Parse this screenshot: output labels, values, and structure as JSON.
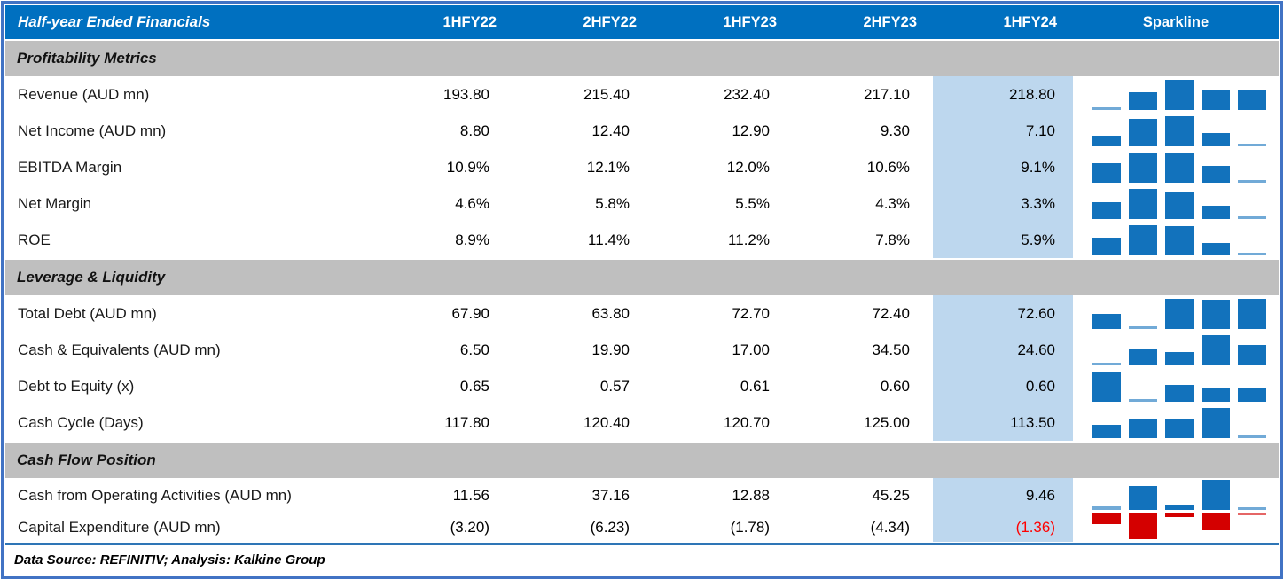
{
  "colors": {
    "header_bg": "#0070C0",
    "band_bg": "#BFBFBF",
    "highlight_bg": "#BDD7EE",
    "bar_blue": "#1272BC",
    "bar_red": "#D40000",
    "negative_text": "#FF0000",
    "frame_border": "#4173C4",
    "divider": "#2E75B6"
  },
  "header": {
    "title": "Half-year Ended Financials",
    "columns": [
      "1HFY22",
      "2HFY22",
      "1HFY23",
      "2HFY23",
      "1HFY24"
    ],
    "sparkline_label": "Sparkline",
    "highlighted_column": "1HFY24"
  },
  "sections": [
    {
      "label": "Profitability Metrics",
      "rows": [
        {
          "label": "Revenue (AUD mn)",
          "display": [
            "193.80",
            "215.40",
            "232.40",
            "217.10",
            "218.80"
          ]
        },
        {
          "label": "Net Income (AUD mn)",
          "display": [
            "8.80",
            "12.40",
            "12.90",
            "9.30",
            "7.10"
          ]
        },
        {
          "label": "EBITDA Margin",
          "display": [
            "10.9%",
            "12.1%",
            "12.0%",
            "10.6%",
            "9.1%"
          ]
        },
        {
          "label": "Net Margin",
          "display": [
            "4.6%",
            "5.8%",
            "5.5%",
            "4.3%",
            "3.3%"
          ]
        },
        {
          "label": "ROE",
          "display": [
            "8.9%",
            "11.4%",
            "11.2%",
            "7.8%",
            "5.9%"
          ]
        }
      ]
    },
    {
      "label": "Leverage & Liquidity",
      "rows": [
        {
          "label": "Total Debt (AUD mn)",
          "display": [
            "67.90",
            "63.80",
            "72.70",
            "72.40",
            "72.60"
          ]
        },
        {
          "label": "Cash & Equivalents (AUD mn)",
          "display": [
            "6.50",
            "19.90",
            "17.00",
            "34.50",
            "24.60"
          ]
        },
        {
          "label": "Debt to Equity (x)",
          "display": [
            "0.65",
            "0.57",
            "0.61",
            "0.60",
            "0.60"
          ]
        },
        {
          "label": "Cash Cycle (Days)",
          "display": [
            "117.80",
            "120.40",
            "120.70",
            "125.00",
            "113.50"
          ]
        }
      ]
    },
    {
      "label": "Cash Flow Position",
      "rows": [
        {
          "label": "Cash from Operating Activities (AUD mn)",
          "display": [
            "11.56",
            "37.16",
            "12.88",
            "45.25",
            "9.46"
          ]
        },
        {
          "label": "Capital Expenditure (AUD mn)",
          "display": [
            "(3.20)",
            "(6.23)",
            "(1.78)",
            "(4.34)",
            "(1.36)"
          ]
        }
      ]
    }
  ],
  "footer": {
    "text": "Data Source: REFINITIV; Analysis: Kalkine Group"
  },
  "chart_data": {
    "type": "table",
    "title": "Half-year Ended Financials",
    "columns": [
      "1HFY22",
      "2HFY22",
      "1HFY23",
      "2HFY23",
      "1HFY24"
    ],
    "highlighted_column": "1HFY24",
    "sparkline_style": {
      "type": "bar",
      "positive_color": "#1272BC",
      "negative_color": "#D40000",
      "scaling": "per-row min-max"
    },
    "source": "Data Source: REFINITIV; Analysis: Kalkine Group",
    "sections": [
      {
        "name": "Profitability Metrics",
        "rows": [
          {
            "metric": "Revenue (AUD mn)",
            "values": [
              193.8,
              215.4,
              232.4,
              217.1,
              218.8
            ]
          },
          {
            "metric": "Net Income (AUD mn)",
            "values": [
              8.8,
              12.4,
              12.9,
              9.3,
              7.1
            ]
          },
          {
            "metric": "EBITDA Margin (%)",
            "values": [
              10.9,
              12.1,
              12.0,
              10.6,
              9.1
            ]
          },
          {
            "metric": "Net Margin (%)",
            "values": [
              4.6,
              5.8,
              5.5,
              4.3,
              3.3
            ]
          },
          {
            "metric": "ROE (%)",
            "values": [
              8.9,
              11.4,
              11.2,
              7.8,
              5.9
            ]
          }
        ]
      },
      {
        "name": "Leverage & Liquidity",
        "rows": [
          {
            "metric": "Total Debt (AUD mn)",
            "values": [
              67.9,
              63.8,
              72.7,
              72.4,
              72.6
            ]
          },
          {
            "metric": "Cash & Equivalents (AUD mn)",
            "values": [
              6.5,
              19.9,
              17.0,
              34.5,
              24.6
            ]
          },
          {
            "metric": "Debt to Equity (x)",
            "values": [
              0.65,
              0.57,
              0.61,
              0.6,
              0.6
            ]
          },
          {
            "metric": "Cash Cycle (Days)",
            "values": [
              117.8,
              120.4,
              120.7,
              125.0,
              113.5
            ]
          }
        ]
      },
      {
        "name": "Cash Flow Position",
        "rows": [
          {
            "metric": "Cash from Operating Activities (AUD mn)",
            "values": [
              11.56,
              37.16,
              12.88,
              45.25,
              9.46
            ]
          },
          {
            "metric": "Capital Expenditure (AUD mn)",
            "values": [
              -3.2,
              -6.23,
              -1.78,
              -4.34,
              -1.36
            ]
          }
        ]
      }
    ]
  }
}
